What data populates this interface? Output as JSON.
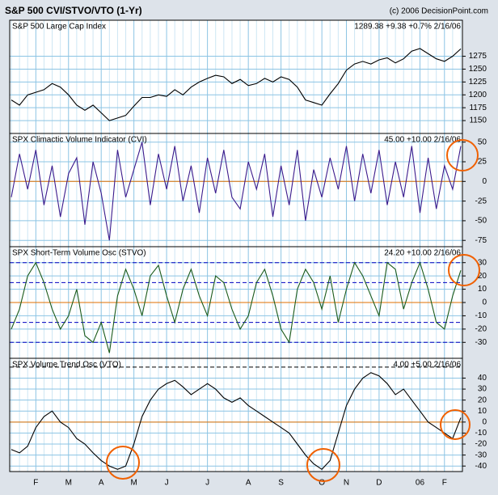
{
  "header": {
    "title": "S&P 500 CVI/STVO/VTO (1-Yr)",
    "credit": "(c) 2006 DecisionPoint.com"
  },
  "chart_data": [
    {
      "type": "line",
      "title": "S&P 500 Large Cap Index",
      "annotation": "1289.38 +9.38 +0.7% 2/16/06",
      "color": "#000000",
      "ylim": [
        1125,
        1345
      ],
      "yticks": [
        1150,
        1175,
        1200,
        1225,
        1250,
        1275
      ],
      "grid": true,
      "hlines": [],
      "values": [
        1190,
        1180,
        1200,
        1205,
        1210,
        1222,
        1215,
        1200,
        1180,
        1170,
        1180,
        1165,
        1150,
        1155,
        1160,
        1178,
        1195,
        1195,
        1200,
        1197,
        1210,
        1200,
        1215,
        1225,
        1232,
        1238,
        1235,
        1222,
        1230,
        1218,
        1222,
        1232,
        1225,
        1235,
        1230,
        1215,
        1190,
        1185,
        1180,
        1202,
        1222,
        1248,
        1260,
        1265,
        1260,
        1268,
        1272,
        1262,
        1270,
        1285,
        1290,
        1280,
        1270,
        1265,
        1275,
        1289.38
      ]
    },
    {
      "type": "line",
      "title": "SPX Climactic Volume Indicator (CVI)",
      "annotation": "45.00 +10.00 2/16/06",
      "color": "#3a1a8c",
      "ylim": [
        -83,
        61
      ],
      "yticks": [
        50,
        25,
        0,
        -25,
        -50,
        -75
      ],
      "grid": true,
      "hlines": [
        {
          "value": 0,
          "color": "#e07000"
        }
      ],
      "values": [
        -20,
        35,
        -10,
        40,
        -30,
        20,
        -45,
        10,
        30,
        -55,
        25,
        -15,
        -75,
        40,
        -20,
        15,
        50,
        -30,
        35,
        -10,
        45,
        -25,
        20,
        -40,
        30,
        -15,
        40,
        -20,
        -35,
        25,
        -10,
        35,
        -45,
        20,
        -30,
        40,
        -50,
        15,
        -20,
        30,
        -10,
        45,
        -25,
        35,
        -15,
        40,
        -30,
        25,
        -20,
        45,
        -40,
        30,
        -35,
        20,
        -10,
        45
      ]
    },
    {
      "type": "line",
      "title": "SPX Short-Term Volume Osc (STVO)",
      "annotation": "24.20 +10.00 2/16/06",
      "color": "#1a5a1a",
      "ylim": [
        -42,
        42
      ],
      "yticks": [
        30,
        20,
        10,
        0,
        -10,
        -20,
        -30
      ],
      "grid": true,
      "hlines": [
        {
          "value": 0,
          "color": "#e07000"
        },
        {
          "value": 15,
          "color": "#0000c0",
          "dashed": true
        },
        {
          "value": -15,
          "color": "#0000c0",
          "dashed": true
        },
        {
          "value": 30,
          "color": "#0000c0",
          "dashed": true
        },
        {
          "value": -30,
          "color": "#0000c0",
          "dashed": true
        }
      ],
      "values": [
        -20,
        -5,
        20,
        30,
        15,
        -5,
        -20,
        -10,
        10,
        -25,
        -30,
        -15,
        -38,
        5,
        25,
        10,
        -10,
        20,
        28,
        5,
        -15,
        10,
        25,
        5,
        -10,
        20,
        15,
        -5,
        -20,
        -10,
        15,
        25,
        5,
        -20,
        -30,
        10,
        25,
        15,
        -5,
        20,
        -15,
        10,
        30,
        20,
        5,
        -10,
        30,
        25,
        -5,
        15,
        30,
        10,
        -15,
        -20,
        5,
        24.2
      ]
    },
    {
      "type": "line",
      "title": "SPX Volume Trend Osc (VTO)",
      "annotation": "4.00 +5.00 2/16/06",
      "color": "#000000",
      "ylim": [
        -45,
        58
      ],
      "yticks": [
        40,
        30,
        20,
        10,
        0,
        -10,
        -20,
        -30,
        -40
      ],
      "grid": true,
      "hlines": [
        {
          "value": 0,
          "color": "#e07000"
        },
        {
          "value": 50,
          "color": "#000000",
          "dashed": true
        }
      ],
      "categories": [
        null,
        null,
        null,
        "F",
        null,
        null,
        null,
        "M",
        null,
        null,
        null,
        "A",
        null,
        null,
        null,
        "M",
        null,
        null,
        null,
        "J",
        null,
        null,
        null,
        null,
        "J",
        null,
        null,
        null,
        null,
        "A",
        null,
        null,
        null,
        "S",
        null,
        null,
        null,
        null,
        "O",
        null,
        null,
        "N",
        null,
        null,
        null,
        "D",
        null,
        null,
        null,
        null,
        "06",
        null,
        null,
        "F",
        null,
        null
      ],
      "values": [
        -25,
        -28,
        -22,
        -5,
        5,
        10,
        0,
        -5,
        -15,
        -20,
        -28,
        -35,
        -40,
        -43,
        -40,
        -20,
        5,
        20,
        30,
        35,
        38,
        32,
        25,
        30,
        35,
        30,
        22,
        18,
        22,
        15,
        10,
        5,
        0,
        -5,
        -10,
        -20,
        -30,
        -38,
        -43,
        -35,
        -10,
        15,
        30,
        40,
        45,
        42,
        35,
        25,
        30,
        20,
        10,
        0,
        -5,
        -10,
        -15,
        4
      ]
    }
  ]
}
